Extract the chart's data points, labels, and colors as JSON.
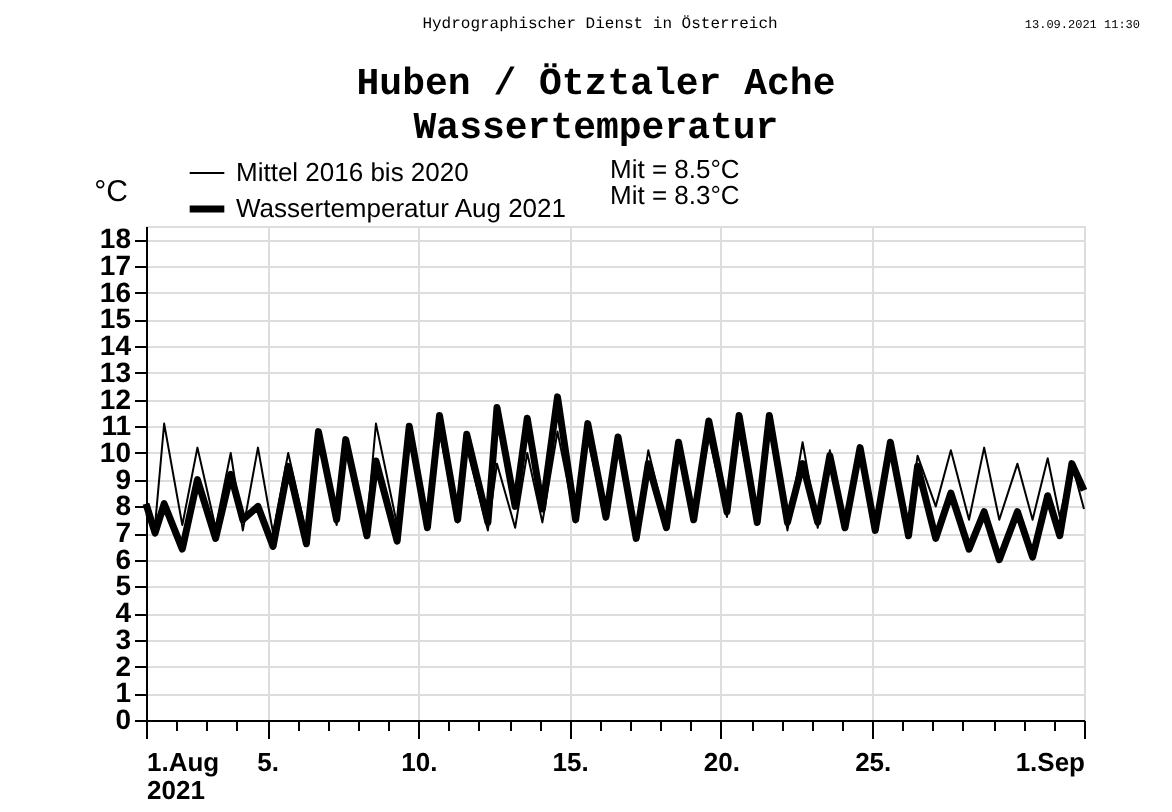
{
  "chart_data": {
    "type": "line",
    "title": "Huben / Ötztaler Ache",
    "subtitle": "Wassertemperatur",
    "ylabel": "°C",
    "annotations": [
      "Hydrographischer Dienst in Österreich",
      "13.09.2021 11:30",
      "Mit =  8.5°C",
      "Mit =  8.3°C"
    ],
    "x": [
      1,
      1.3,
      1.6,
      2.2,
      2.7,
      3.3,
      3.8,
      4.2,
      4.7,
      5.2,
      5.7,
      6.3,
      6.7,
      7.3,
      7.6,
      8.3,
      8.6,
      9.3,
      9.7,
      10.3,
      10.7,
      11.3,
      11.6,
      12.3,
      12.6,
      13.2,
      13.6,
      14.1,
      14.6,
      15.2,
      15.6,
      16.2,
      16.6,
      17.2,
      17.6,
      18.2,
      18.6,
      19.1,
      19.6,
      20.2,
      20.6,
      21.2,
      21.6,
      22.2,
      22.7,
      23.2,
      23.6,
      24.1,
      24.6,
      25.1,
      25.6,
      26.2,
      26.5,
      27.1,
      27.6,
      28.2,
      28.7,
      29.2,
      29.8,
      30.3,
      30.8,
      31.2,
      31.6,
      32
    ],
    "series": [
      {
        "name": "Mittel 2016 bis 2020",
        "color": "#000000",
        "values": [
          7.7,
          7.3,
          11.1,
          7.3,
          10.2,
          7.2,
          10.0,
          7.1,
          10.2,
          7.0,
          10.0,
          7.0,
          10.5,
          7.3,
          10.3,
          7.3,
          11.1,
          7.3,
          10.5,
          7.4,
          10.8,
          7.4,
          10.2,
          7.1,
          9.6,
          7.2,
          10.0,
          7.4,
          10.8,
          7.4,
          10.5,
          7.5,
          10.2,
          7.1,
          10.1,
          7.3,
          10.2,
          7.5,
          10.6,
          7.6,
          10.8,
          7.3,
          11.0,
          7.1,
          10.4,
          7.2,
          10.1,
          7.4,
          10.1,
          7.2,
          10.3,
          7.4,
          9.9,
          8.0,
          10.1,
          7.5,
          10.2,
          7.5,
          9.6,
          7.5,
          9.8,
          7.6,
          9.6,
          7.9
        ]
      },
      {
        "name": "Wassertemperatur Aug 2021",
        "color": "#000000",
        "values": [
          8.1,
          7.0,
          8.1,
          6.4,
          9.0,
          6.8,
          9.2,
          7.5,
          8.0,
          6.5,
          9.5,
          6.6,
          10.8,
          7.5,
          10.5,
          6.9,
          9.7,
          6.7,
          11.0,
          7.2,
          11.4,
          7.5,
          10.7,
          7.4,
          11.7,
          8.0,
          11.3,
          7.9,
          12.1,
          7.5,
          11.1,
          7.6,
          10.6,
          6.8,
          9.6,
          7.2,
          10.4,
          7.5,
          11.2,
          7.8,
          11.4,
          7.4,
          11.4,
          7.4,
          9.6,
          7.4,
          9.9,
          7.2,
          10.2,
          7.1,
          10.4,
          6.9,
          9.5,
          6.8,
          8.5,
          6.4,
          7.8,
          6.0,
          7.8,
          6.1,
          8.4,
          6.9,
          9.6,
          8.6
        ]
      }
    ],
    "xlim": [
      1,
      32
    ],
    "xticks": [
      {
        "value": 1,
        "label": "1.Aug\n2021"
      },
      {
        "value": 2,
        "label": null
      },
      {
        "value": 3,
        "label": null
      },
      {
        "value": 4,
        "label": null
      },
      {
        "value": 5,
        "label": "5."
      },
      {
        "value": 6,
        "label": null
      },
      {
        "value": 7,
        "label": null
      },
      {
        "value": 8,
        "label": null
      },
      {
        "value": 9,
        "label": null
      },
      {
        "value": 10,
        "label": "10."
      },
      {
        "value": 11,
        "label": null
      },
      {
        "value": 12,
        "label": null
      },
      {
        "value": 13,
        "label": null
      },
      {
        "value": 14,
        "label": null
      },
      {
        "value": 15,
        "label": "15."
      },
      {
        "value": 16,
        "label": null
      },
      {
        "value": 17,
        "label": null
      },
      {
        "value": 18,
        "label": null
      },
      {
        "value": 19,
        "label": null
      },
      {
        "value": 20,
        "label": "20."
      },
      {
        "value": 21,
        "label": null
      },
      {
        "value": 22,
        "label": null
      },
      {
        "value": 23,
        "label": null
      },
      {
        "value": 24,
        "label": null
      },
      {
        "value": 25,
        "label": "25."
      },
      {
        "value": 26,
        "label": null
      },
      {
        "value": 27,
        "label": null
      },
      {
        "value": 28,
        "label": null
      },
      {
        "value": 29,
        "label": null
      },
      {
        "value": 30,
        "label": null
      },
      {
        "value": 31,
        "label": null
      },
      {
        "value": 32,
        "label": "1.Sep"
      }
    ],
    "ylim": [
      0,
      18.5
    ],
    "yticks": [
      0,
      1,
      2,
      3,
      4,
      5,
      6,
      7,
      8,
      9,
      10,
      11,
      12,
      13,
      14,
      15,
      16,
      17,
      18
    ],
    "grid": true,
    "legend": "top left",
    "marker": "none",
    "line_style": "solid"
  }
}
